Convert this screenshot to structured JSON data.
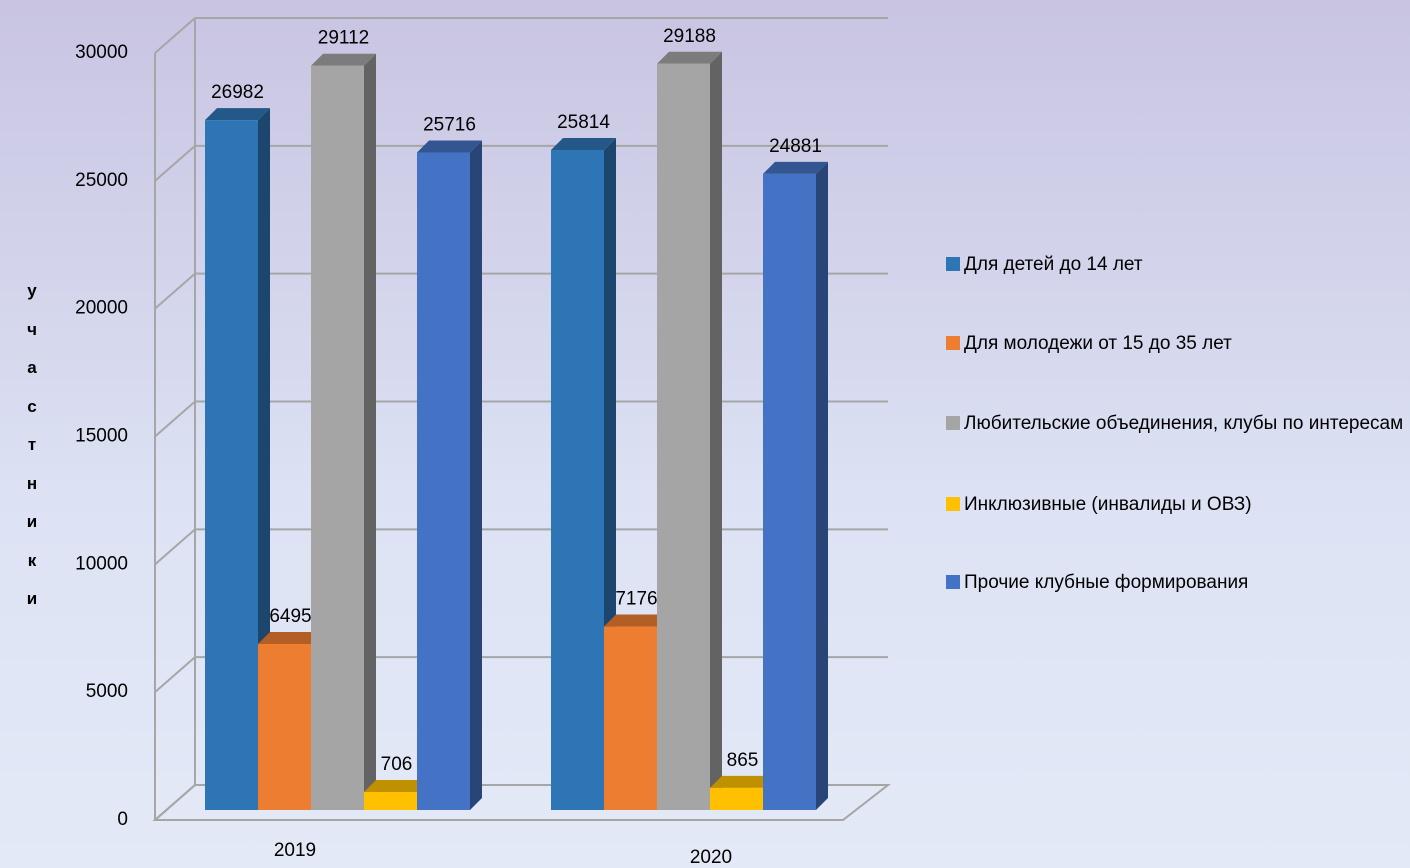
{
  "chart_data": {
    "type": "bar3d",
    "y_axis_label": "участники",
    "categories": [
      "2019",
      "2020"
    ],
    "series": [
      {
        "name": "Для детей до 14 лет",
        "color": "#2e75b6",
        "values": [
          26982,
          25814
        ]
      },
      {
        "name": "Для молодежи от 15 до 35 лет",
        "color": "#ed7d31",
        "values": [
          6495,
          7176
        ]
      },
      {
        "name": "Любительские объединения, клубы по интересам",
        "color": "#a5a5a5",
        "values": [
          29112,
          29188
        ]
      },
      {
        "name": "Инклюзивные (инвалиды и ОВЗ)",
        "color": "#ffc000",
        "values": [
          706,
          865
        ]
      },
      {
        "name": "Прочие клубные формирования",
        "color": "#4472c4",
        "values": [
          25716,
          24881
        ]
      }
    ],
    "ylim": [
      0,
      30000
    ],
    "yticks": [
      0,
      5000,
      10000,
      15000,
      20000,
      25000,
      30000
    ],
    "grid": true,
    "legend": "right"
  }
}
